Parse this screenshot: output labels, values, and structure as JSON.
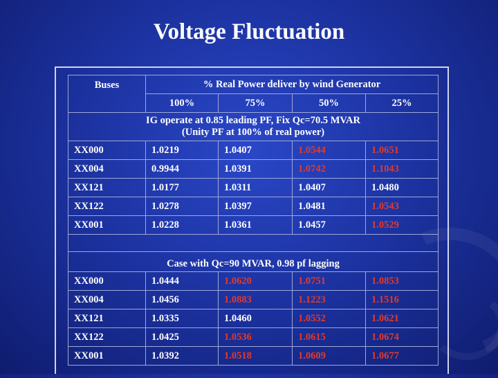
{
  "title": "Voltage Fluctuation",
  "colors": {
    "normal": "#ffffff",
    "highlight": "#e23a2a",
    "background": "#1a2f9a"
  },
  "header": {
    "buses": "Buses",
    "group": "% Real Power deliver by wind Generator",
    "levels": [
      "100%",
      "75%",
      "50%",
      "25%"
    ]
  },
  "section1": {
    "note_line1": "IG operate at 0.85 leading PF, Fix Qc=70.5 MVAR",
    "note_line2": "(Unity PF at 100% of real power)",
    "rows": [
      {
        "bus": "XX000",
        "values": [
          "1.0219",
          "1.0407",
          "1.0544",
          "1.0651"
        ],
        "highlight": [
          false,
          false,
          true,
          true
        ]
      },
      {
        "bus": "XX004",
        "values": [
          "0.9944",
          "1.0391",
          "1.0742",
          "1.1043"
        ],
        "highlight": [
          false,
          false,
          true,
          true
        ]
      },
      {
        "bus": "XX121",
        "values": [
          "1.0177",
          "1.0311",
          "1.0407",
          "1.0480"
        ],
        "highlight": [
          false,
          false,
          false,
          false
        ]
      },
      {
        "bus": "XX122",
        "values": [
          "1.0278",
          "1.0397",
          "1.0481",
          "1.0543"
        ],
        "highlight": [
          false,
          false,
          false,
          true
        ]
      },
      {
        "bus": "XX001",
        "values": [
          "1.0228",
          "1.0361",
          "1.0457",
          "1.0529"
        ],
        "highlight": [
          false,
          false,
          false,
          true
        ]
      }
    ]
  },
  "section2": {
    "note": "Case with Qc=90 MVAR, 0.98 pf lagging",
    "rows": [
      {
        "bus": "XX000",
        "values": [
          "1.0444",
          "1.0620",
          "1.0751",
          "1.0853"
        ],
        "highlight": [
          false,
          true,
          true,
          true
        ]
      },
      {
        "bus": "XX004",
        "values": [
          "1.0456",
          "1.0883",
          "1.1223",
          "1.1516"
        ],
        "highlight": [
          false,
          true,
          true,
          true
        ]
      },
      {
        "bus": "XX121",
        "values": [
          "1.0335",
          "1.0460",
          "1.0552",
          "1.0621"
        ],
        "highlight": [
          false,
          false,
          true,
          true
        ]
      },
      {
        "bus": "XX122",
        "values": [
          "1.0425",
          "1.0536",
          "1.0615",
          "1.0674"
        ],
        "highlight": [
          false,
          true,
          true,
          true
        ]
      },
      {
        "bus": "XX001",
        "values": [
          "1.0392",
          "1.0518",
          "1.0609",
          "1.0677"
        ],
        "highlight": [
          false,
          true,
          true,
          true
        ]
      }
    ]
  }
}
